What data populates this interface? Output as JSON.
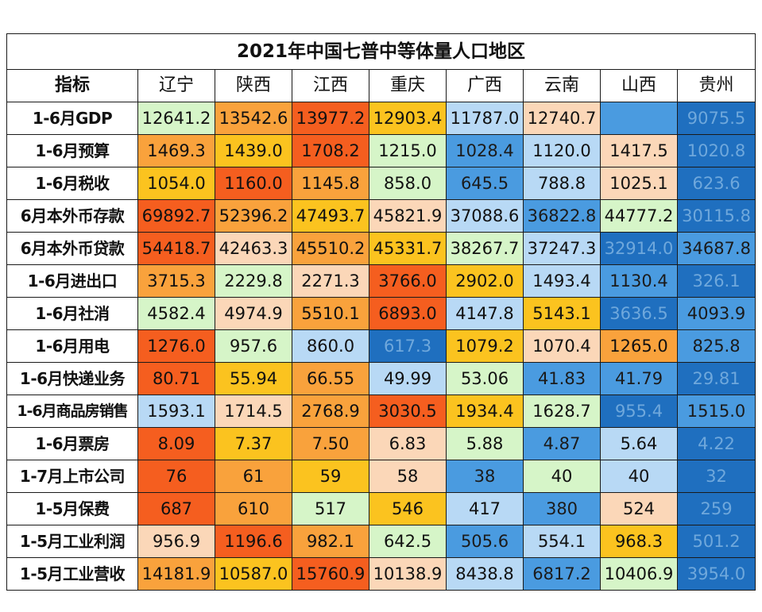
{
  "table": {
    "title": "2021年中国七普中等体量人口地区",
    "header_label": "指标",
    "regions": [
      "辽宁",
      "陕西",
      "江西",
      "重庆",
      "广西",
      "云南",
      "山西",
      "贵州"
    ],
    "rows": [
      {
        "label": "1-6月GDP",
        "values": [
          "12641.2",
          "13542.6",
          "13977.2",
          "12903.4",
          "11787.0",
          "12740.7",
          "",
          "9075.5"
        ],
        "colors": [
          "#d6f5c8",
          "#f9a23c",
          "#f55e1f",
          "#fbc31f",
          "#b8d9f5",
          "#fbd7b8",
          "#4a9be0",
          "#1f6fbf"
        ]
      },
      {
        "label": "1-6月预算",
        "values": [
          "1469.3",
          "1439.0",
          "1708.2",
          "1215.0",
          "1028.4",
          "1120.0",
          "1417.5",
          "1020.8"
        ],
        "colors": [
          "#f9a23c",
          "#fbc31f",
          "#f55e1f",
          "#d6f5c8",
          "#4a9be0",
          "#b8d9f5",
          "#fbd7b8",
          "#1f6fbf"
        ]
      },
      {
        "label": "1-6月税收",
        "values": [
          "1054.0",
          "1160.0",
          "1145.8",
          "858.0",
          "645.5",
          "788.8",
          "1025.1",
          "623.6"
        ],
        "colors": [
          "#fbc31f",
          "#f55e1f",
          "#f9a23c",
          "#d6f5c8",
          "#4a9be0",
          "#b8d9f5",
          "#fbd7b8",
          "#1f6fbf"
        ]
      },
      {
        "label": "6月本外币存款",
        "values": [
          "69892.7",
          "52396.2",
          "47493.7",
          "45821.9",
          "37088.6",
          "36822.8",
          "44777.2",
          "30115.8"
        ],
        "colors": [
          "#f55e1f",
          "#f9a23c",
          "#fbc31f",
          "#fbd7b8",
          "#b8d9f5",
          "#4a9be0",
          "#d6f5c8",
          "#1f6fbf"
        ]
      },
      {
        "label": "6月本外币贷款",
        "values": [
          "54418.7",
          "42463.3",
          "45510.2",
          "45331.7",
          "38267.7",
          "37247.3",
          "32914.0",
          "34687.8"
        ],
        "colors": [
          "#f55e1f",
          "#fbd7b8",
          "#f9a23c",
          "#fbc31f",
          "#d6f5c8",
          "#b8d9f5",
          "#1f6fbf",
          "#4a9be0"
        ]
      },
      {
        "label": "1-6月进出口",
        "values": [
          "3715.3",
          "2229.8",
          "2271.3",
          "3766.0",
          "2902.0",
          "1493.4",
          "1130.4",
          "326.1"
        ],
        "colors": [
          "#f9a23c",
          "#d6f5c8",
          "#fbd7b8",
          "#f55e1f",
          "#fbc31f",
          "#b8d9f5",
          "#4a9be0",
          "#1f6fbf"
        ]
      },
      {
        "label": "1-6月社消",
        "values": [
          "4582.4",
          "4974.9",
          "5510.1",
          "6893.0",
          "4147.8",
          "5143.1",
          "3636.5",
          "4093.9"
        ],
        "colors": [
          "#d6f5c8",
          "#fbd7b8",
          "#f9a23c",
          "#f55e1f",
          "#b8d9f5",
          "#fbc31f",
          "#1f6fbf",
          "#4a9be0"
        ]
      },
      {
        "label": "1-6月用电",
        "values": [
          "1276.0",
          "957.6",
          "860.0",
          "617.3",
          "1079.2",
          "1070.4",
          "1265.0",
          "825.8"
        ],
        "colors": [
          "#f55e1f",
          "#d6f5c8",
          "#b8d9f5",
          "#1f6fbf",
          "#fbc31f",
          "#fbd7b8",
          "#f9a23c",
          "#4a9be0"
        ]
      },
      {
        "label": "1-6月快递业务",
        "values": [
          "80.71",
          "55.94",
          "66.55",
          "49.99",
          "53.06",
          "41.83",
          "41.79",
          "29.81"
        ],
        "colors": [
          "#f55e1f",
          "#fbc31f",
          "#f9a23c",
          "#b8d9f5",
          "#d6f5c8",
          "#4a9be0",
          "#4a9be0",
          "#1f6fbf"
        ]
      },
      {
        "label": "1-6月商品房销售",
        "values": [
          "1593.1",
          "1714.5",
          "2768.9",
          "3030.5",
          "1934.4",
          "1628.7",
          "955.4",
          "1515.0"
        ],
        "colors": [
          "#b8d9f5",
          "#fbd7b8",
          "#f9a23c",
          "#f55e1f",
          "#fbc31f",
          "#d6f5c8",
          "#1f6fbf",
          "#4a9be0"
        ]
      },
      {
        "label": "1-6月票房",
        "values": [
          "8.09",
          "7.37",
          "7.50",
          "6.83",
          "5.88",
          "4.87",
          "5.64",
          "4.22"
        ],
        "colors": [
          "#f55e1f",
          "#fbc31f",
          "#f9a23c",
          "#fbd7b8",
          "#d6f5c8",
          "#4a9be0",
          "#b8d9f5",
          "#1f6fbf"
        ]
      },
      {
        "label": "1-7月上市公司",
        "values": [
          "76",
          "61",
          "59",
          "58",
          "38",
          "40",
          "40",
          "32"
        ],
        "colors": [
          "#f55e1f",
          "#f9a23c",
          "#fbc31f",
          "#fbd7b8",
          "#4a9be0",
          "#d6f5c8",
          "#b8d9f5",
          "#1f6fbf"
        ]
      },
      {
        "label": "1-5月保费",
        "values": [
          "687",
          "610",
          "517",
          "546",
          "417",
          "380",
          "524",
          "259"
        ],
        "colors": [
          "#f55e1f",
          "#f9a23c",
          "#d6f5c8",
          "#fbc31f",
          "#b8d9f5",
          "#4a9be0",
          "#fbd7b8",
          "#1f6fbf"
        ]
      },
      {
        "label": "1-5月工业利润",
        "values": [
          "956.9",
          "1196.6",
          "982.1",
          "642.5",
          "505.6",
          "554.1",
          "968.3",
          "501.2"
        ],
        "colors": [
          "#fbd7b8",
          "#f55e1f",
          "#f9a23c",
          "#d6f5c8",
          "#4a9be0",
          "#b8d9f5",
          "#fbc31f",
          "#1f6fbf"
        ]
      },
      {
        "label": "1-5月工业营收",
        "values": [
          "14181.9",
          "10587.0",
          "15760.9",
          "10138.9",
          "8438.8",
          "6817.2",
          "10406.9",
          "3954.0"
        ],
        "colors": [
          "#f9a23c",
          "#fbc31f",
          "#f55e1f",
          "#fbd7b8",
          "#b8d9f5",
          "#4a9be0",
          "#d6f5c8",
          "#1f6fbf"
        ]
      }
    ]
  }
}
